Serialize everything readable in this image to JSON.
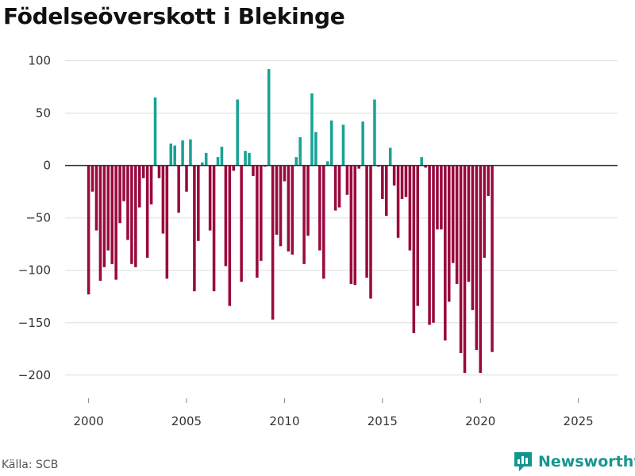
{
  "title": "Födelseöverskott i Blekinge",
  "source": "Källa: SCB",
  "brand": "Newsworthy",
  "colors": {
    "positive": "#17a396",
    "negative": "#9a0a3f",
    "brand": "#14968f",
    "grid": "#dddddd",
    "zero": "#333333"
  },
  "chart_data": {
    "type": "bar",
    "title": "Födelseöverskott i Blekinge",
    "xlabel": "",
    "ylabel": "",
    "grid": true,
    "ylim": [
      -210,
      105
    ],
    "xlim": [
      1998.8,
      2027
    ],
    "yticks": [
      -200,
      -150,
      -100,
      -50,
      0,
      50,
      100
    ],
    "xticks": [
      2000,
      2005,
      2010,
      2015,
      2020,
      2025
    ],
    "ytick_labels": [
      "−200",
      "−150",
      "−100",
      "−50",
      "0",
      "50",
      "100"
    ],
    "xtick_labels": [
      "2000",
      "2005",
      "2010",
      "2015",
      "2020",
      "2025"
    ],
    "x_start": 2000.0,
    "x_step": 0.2,
    "values": [
      -123,
      -25,
      -62,
      -110,
      -97,
      -81,
      -94,
      -109,
      -55,
      -34,
      -71,
      -94,
      -97,
      -40,
      -12,
      -88,
      -37,
      65,
      -12,
      -65,
      -108,
      21,
      19,
      -45,
      24,
      -25,
      25,
      -120,
      -72,
      3,
      12,
      -62,
      -120,
      8,
      18,
      -96,
      -134,
      -5,
      63,
      -111,
      14,
      12,
      -10,
      -107,
      -91,
      -1,
      92,
      -147,
      -66,
      -77,
      -15,
      -82,
      -85,
      8,
      27,
      -94,
      -67,
      69,
      32,
      -81,
      -108,
      4,
      43,
      -43,
      -40,
      39,
      -28,
      -113,
      -114,
      -3,
      42,
      -107,
      -127,
      63,
      -1,
      -32,
      -48,
      17,
      -19,
      -69,
      -32,
      -30,
      -81,
      -160,
      -134,
      8,
      -2,
      -152,
      -150,
      -61,
      -61,
      -167,
      -130,
      -93,
      -113,
      -179,
      -198,
      -111,
      -138,
      -176,
      -198,
      -88,
      -29,
      -178
    ]
  }
}
